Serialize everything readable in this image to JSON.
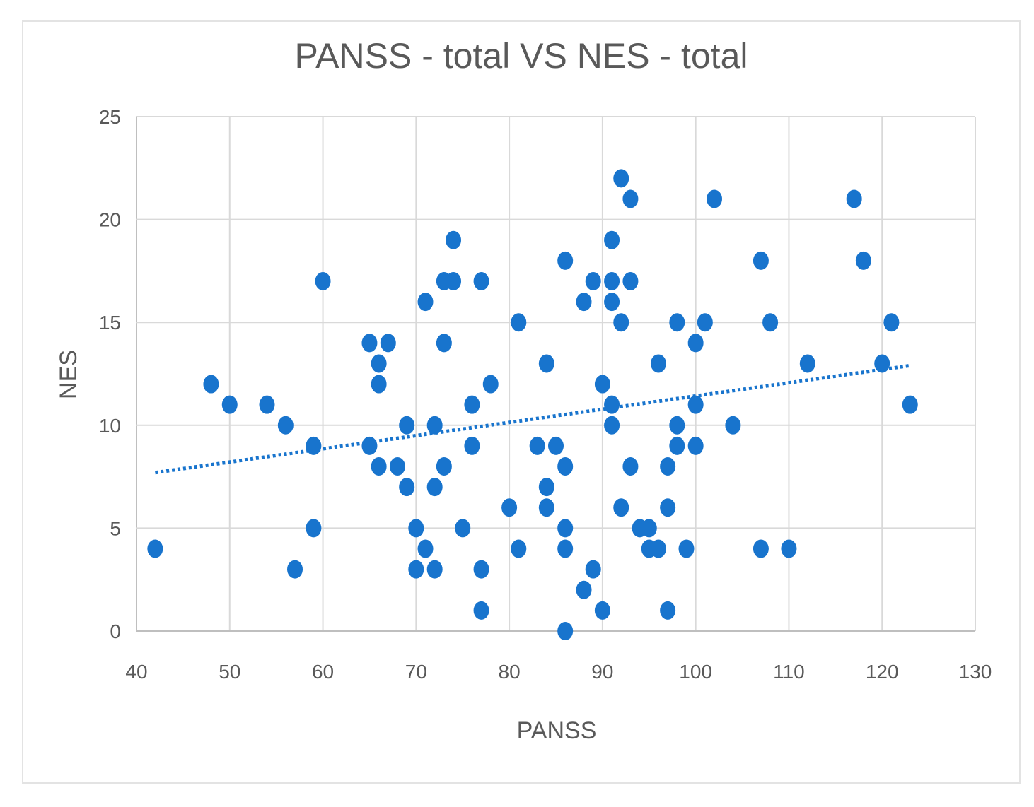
{
  "chart_data": {
    "type": "scatter",
    "title": "PANSS - total VS NES - total",
    "xlabel": "PANSS",
    "ylabel": "NES",
    "xlim": [
      40,
      130
    ],
    "ylim": [
      0,
      25
    ],
    "x_ticks": [
      "40",
      "50",
      "60",
      "70",
      "80",
      "90",
      "100",
      "110",
      "120",
      "130"
    ],
    "y_ticks": [
      "0",
      "5",
      "10",
      "15",
      "20",
      "25"
    ],
    "grid": true,
    "trendline": {
      "style": "dotted",
      "kind": "linear",
      "x": [
        42,
        123
      ],
      "y": [
        7.7,
        12.9
      ]
    },
    "colors": {
      "points": "#1874cd",
      "trendline": "#1874cd"
    },
    "points": [
      {
        "x": 42,
        "y": 4
      },
      {
        "x": 48,
        "y": 12
      },
      {
        "x": 50,
        "y": 11
      },
      {
        "x": 54,
        "y": 11
      },
      {
        "x": 56,
        "y": 10
      },
      {
        "x": 57,
        "y": 3
      },
      {
        "x": 59,
        "y": 9
      },
      {
        "x": 59,
        "y": 5
      },
      {
        "x": 60,
        "y": 17
      },
      {
        "x": 65,
        "y": 14
      },
      {
        "x": 65,
        "y": 9
      },
      {
        "x": 66,
        "y": 13
      },
      {
        "x": 66,
        "y": 12
      },
      {
        "x": 66,
        "y": 8
      },
      {
        "x": 67,
        "y": 14
      },
      {
        "x": 68,
        "y": 8
      },
      {
        "x": 69,
        "y": 10
      },
      {
        "x": 69,
        "y": 7
      },
      {
        "x": 70,
        "y": 5
      },
      {
        "x": 70,
        "y": 3
      },
      {
        "x": 71,
        "y": 16
      },
      {
        "x": 71,
        "y": 4
      },
      {
        "x": 72,
        "y": 10
      },
      {
        "x": 72,
        "y": 7
      },
      {
        "x": 72,
        "y": 3
      },
      {
        "x": 73,
        "y": 17
      },
      {
        "x": 73,
        "y": 14
      },
      {
        "x": 73,
        "y": 8
      },
      {
        "x": 74,
        "y": 19
      },
      {
        "x": 74,
        "y": 17
      },
      {
        "x": 75,
        "y": 5
      },
      {
        "x": 76,
        "y": 11
      },
      {
        "x": 76,
        "y": 9
      },
      {
        "x": 77,
        "y": 17
      },
      {
        "x": 77,
        "y": 3
      },
      {
        "x": 77,
        "y": 1
      },
      {
        "x": 78,
        "y": 12
      },
      {
        "x": 80,
        "y": 6
      },
      {
        "x": 81,
        "y": 15
      },
      {
        "x": 81,
        "y": 4
      },
      {
        "x": 83,
        "y": 9
      },
      {
        "x": 84,
        "y": 13
      },
      {
        "x": 84,
        "y": 7
      },
      {
        "x": 84,
        "y": 6
      },
      {
        "x": 85,
        "y": 9
      },
      {
        "x": 86,
        "y": 18
      },
      {
        "x": 86,
        "y": 8
      },
      {
        "x": 86,
        "y": 5
      },
      {
        "x": 86,
        "y": 4
      },
      {
        "x": 86,
        "y": 0
      },
      {
        "x": 88,
        "y": 16
      },
      {
        "x": 88,
        "y": 2
      },
      {
        "x": 89,
        "y": 17
      },
      {
        "x": 89,
        "y": 3
      },
      {
        "x": 90,
        "y": 12
      },
      {
        "x": 90,
        "y": 1
      },
      {
        "x": 91,
        "y": 19
      },
      {
        "x": 91,
        "y": 17
      },
      {
        "x": 91,
        "y": 16
      },
      {
        "x": 91,
        "y": 11
      },
      {
        "x": 91,
        "y": 10
      },
      {
        "x": 92,
        "y": 22
      },
      {
        "x": 92,
        "y": 15
      },
      {
        "x": 92,
        "y": 6
      },
      {
        "x": 93,
        "y": 21
      },
      {
        "x": 93,
        "y": 17
      },
      {
        "x": 93,
        "y": 8
      },
      {
        "x": 94,
        "y": 5
      },
      {
        "x": 95,
        "y": 5
      },
      {
        "x": 95,
        "y": 4
      },
      {
        "x": 96,
        "y": 13
      },
      {
        "x": 96,
        "y": 4
      },
      {
        "x": 97,
        "y": 8
      },
      {
        "x": 97,
        "y": 6
      },
      {
        "x": 97,
        "y": 1
      },
      {
        "x": 98,
        "y": 15
      },
      {
        "x": 98,
        "y": 10
      },
      {
        "x": 98,
        "y": 9
      },
      {
        "x": 99,
        "y": 4
      },
      {
        "x": 100,
        "y": 14
      },
      {
        "x": 100,
        "y": 11
      },
      {
        "x": 100,
        "y": 9
      },
      {
        "x": 101,
        "y": 15
      },
      {
        "x": 102,
        "y": 21
      },
      {
        "x": 104,
        "y": 10
      },
      {
        "x": 107,
        "y": 18
      },
      {
        "x": 107,
        "y": 4
      },
      {
        "x": 108,
        "y": 15
      },
      {
        "x": 110,
        "y": 4
      },
      {
        "x": 112,
        "y": 13
      },
      {
        "x": 117,
        "y": 21
      },
      {
        "x": 118,
        "y": 18
      },
      {
        "x": 120,
        "y": 13
      },
      {
        "x": 121,
        "y": 15
      },
      {
        "x": 123,
        "y": 11
      }
    ]
  }
}
